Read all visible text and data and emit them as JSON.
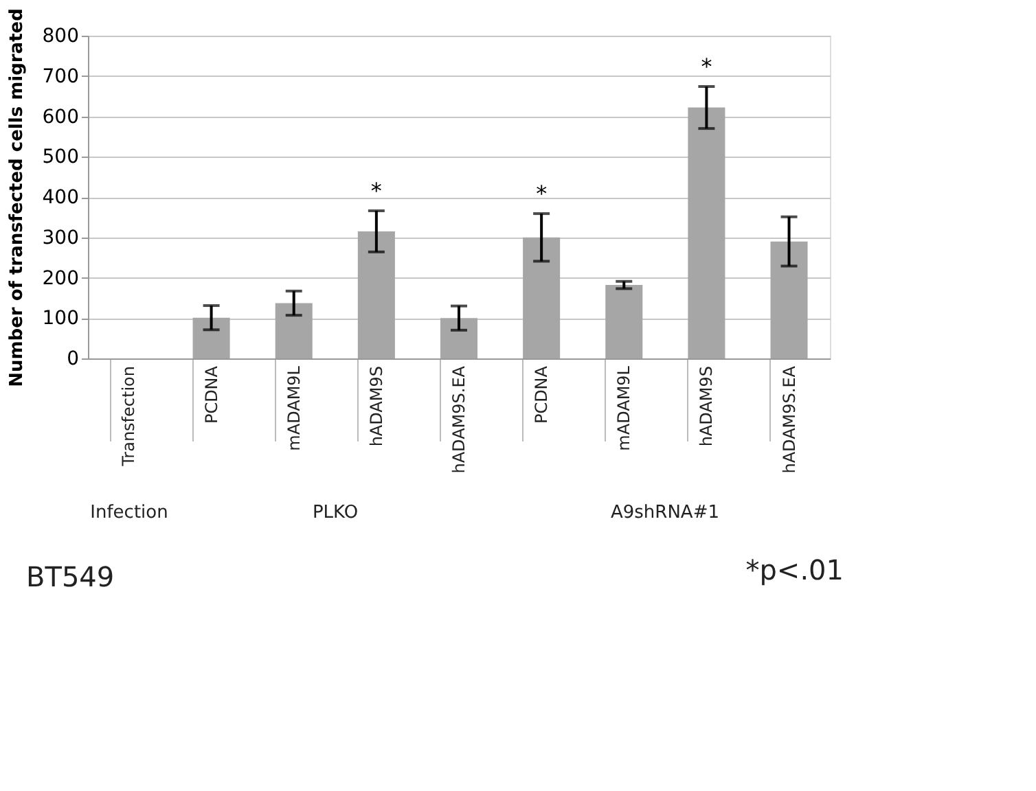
{
  "chart_data": {
    "type": "bar",
    "ylabel": "Number of transfected cells migrated",
    "categories": [
      "Transfection",
      "PCDNA",
      "mADAM9L",
      "hADAM9S",
      "hADAM9S.EA",
      "PCDNA",
      "mADAM9L",
      "hADAM9S",
      "hADAM9S.EA"
    ],
    "values": [
      null,
      101,
      137,
      315,
      100,
      300,
      182,
      622,
      290
    ],
    "errors": [
      null,
      30,
      30,
      51,
      30,
      59,
      9,
      52,
      61
    ],
    "value_labels": [
      null,
      null,
      null,
      "*",
      null,
      "*",
      null,
      "*",
      null
    ],
    "color": "#a6a6a6",
    "ylim": [
      0,
      800
    ],
    "yticks": [
      0,
      100,
      200,
      300,
      400,
      500,
      600,
      700,
      800
    ],
    "grid": "y",
    "annotations": [
      "Infection",
      "PLKO",
      "A9shRNA#1",
      "BT549",
      "*p<.01"
    ]
  }
}
